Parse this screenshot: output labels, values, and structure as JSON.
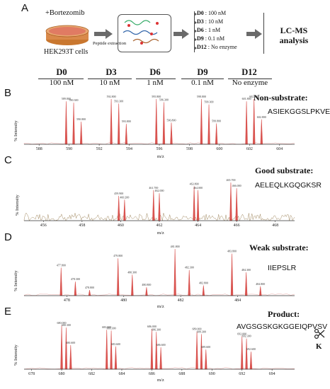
{
  "panelA": {
    "letter": "A",
    "drug": "+Bortezomib",
    "cells": "HEK293T cells",
    "step": "Peptide extraction",
    "doses": [
      {
        "label": "D0",
        "value": ": 100 nM"
      },
      {
        "label": "D3",
        "value": ": 10  nM"
      },
      {
        "label": "D6",
        "value": ": 1 nM"
      },
      {
        "label": "D9",
        "value": ": 0.1 nM"
      },
      {
        "label": "D12",
        "value": ": No enzyme"
      }
    ],
    "analysis": "LC-MS analysis"
  },
  "doseHeader": [
    {
      "label": "D0",
      "value": "100 nM"
    },
    {
      "label": "D3",
      "value": "10 nM"
    },
    {
      "label": "D6",
      "value": "1 nM"
    },
    {
      "label": "D9",
      "value": "0.1 nM"
    },
    {
      "label": "D12",
      "value": "No enzyme"
    }
  ],
  "yAxisLabel": "% Intensity",
  "xAxisLabel": "m/z",
  "colors": {
    "peak": "#d9534f",
    "noise": "#8b6b3a",
    "axis": "#333333"
  },
  "panels": [
    {
      "letter": "B",
      "type": "Non-substrate:",
      "sequence": "ASIEKGGSLPKVEA",
      "ticks": [
        "588",
        "590",
        "592",
        "594",
        "596",
        "598",
        "600",
        "602",
        "604"
      ]
    },
    {
      "letter": "C",
      "type": "Good substrate:",
      "sequence": "AELEQLKGQGKSR",
      "ticks": [
        "456",
        "458",
        "460",
        "462",
        "464",
        "466",
        "468"
      ]
    },
    {
      "letter": "D",
      "type": "Weak substrate:",
      "sequence": "IIEPSLR",
      "ticks": [
        "478",
        "480",
        "482",
        "484"
      ]
    },
    {
      "letter": "E",
      "type": "Product:",
      "sequence": "AVGSGSKGKGGEIQPVSV",
      "cutResidue": "K",
      "ticks": [
        "678",
        "680",
        "682",
        "684",
        "686",
        "688",
        "690",
        "692",
        "694"
      ]
    }
  ],
  "chart_data": [
    {
      "type": "line",
      "title": "Non-substrate:",
      "xlabel": "m/z",
      "ylabel": "% Intensity",
      "xlim": [
        587,
        605
      ],
      "series": [
        {
          "name": "ASIEKGGSLPKVEA",
          "x": [
            589.8,
            590.3,
            590.8,
            592.8,
            593.3,
            593.8,
            595.8,
            596.3,
            596.8,
            598.8,
            599.3,
            599.8,
            601.8,
            602.3,
            602.8
          ],
          "values": [
            95,
            92,
            50,
            100,
            90,
            45,
            100,
            93,
            48,
            100,
            88,
            46,
            95,
            100,
            55
          ]
        }
      ]
    },
    {
      "type": "line",
      "title": "Good substrate:",
      "xlabel": "m/z",
      "ylabel": "% Intensity",
      "xlim": [
        455,
        469
      ],
      "series": [
        {
          "name": "AELEQLKGQGKSR",
          "x": [
            459.9,
            460.2,
            461.7,
            462.0,
            463.8,
            464.0,
            465.7,
            466.0
          ],
          "values": [
            65,
            55,
            80,
            72,
            90,
            80,
            100,
            85
          ]
        }
      ]
    },
    {
      "type": "line",
      "title": "Weak substrate:",
      "xlabel": "m/z",
      "ylabel": "% Intensity",
      "xlim": [
        476.5,
        486
      ],
      "series": [
        {
          "name": "IIEPSLR",
          "x": [
            477.8,
            478.3,
            478.8,
            479.8,
            480.3,
            480.8,
            481.8,
            482.3,
            482.8,
            483.8,
            484.3,
            484.8
          ],
          "values": [
            60,
            30,
            12,
            80,
            45,
            18,
            100,
            55,
            22,
            90,
            50,
            20
          ]
        }
      ]
    },
    {
      "type": "line",
      "title": "Product:",
      "xlabel": "m/z",
      "ylabel": "% Intensity",
      "xlim": [
        677.5,
        695.5
      ],
      "series": [
        {
          "name": "AVGSGSKGKGGEIQPVSV",
          "x": [
            680.0,
            680.3,
            680.6,
            683.0,
            683.3,
            683.6,
            686.0,
            686.3,
            686.6,
            689.0,
            689.3,
            689.6,
            692.0,
            692.3,
            692.6
          ],
          "values": [
            100,
            95,
            55,
            90,
            88,
            52,
            92,
            85,
            50,
            86,
            80,
            45,
            75,
            70,
            40
          ]
        }
      ]
    }
  ]
}
